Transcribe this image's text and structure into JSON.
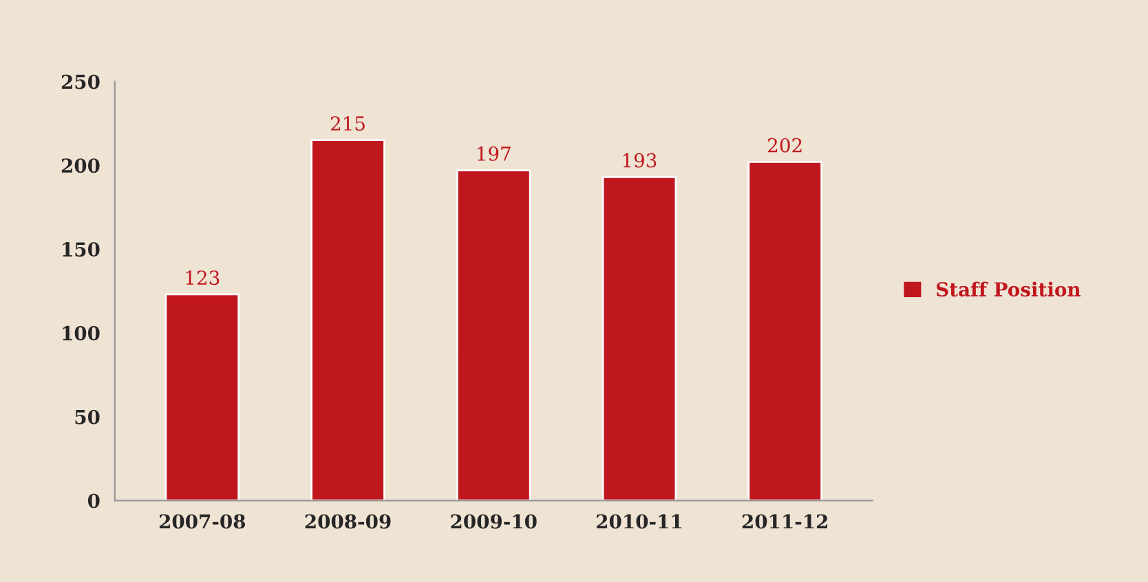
{
  "chart_data": {
    "type": "bar",
    "categories": [
      "2007-08",
      "2008-09",
      "2009-10",
      "2010-11",
      "2011-12"
    ],
    "series": [
      {
        "name": "Staff Position",
        "color": "#c0161e",
        "values": [
          123,
          215,
          197,
          193,
          202
        ]
      }
    ],
    "ylim": [
      0,
      250
    ],
    "yticks": [
      0,
      50,
      100,
      150,
      200,
      250
    ],
    "data_labels": true,
    "legend": "right",
    "grid": false
  }
}
